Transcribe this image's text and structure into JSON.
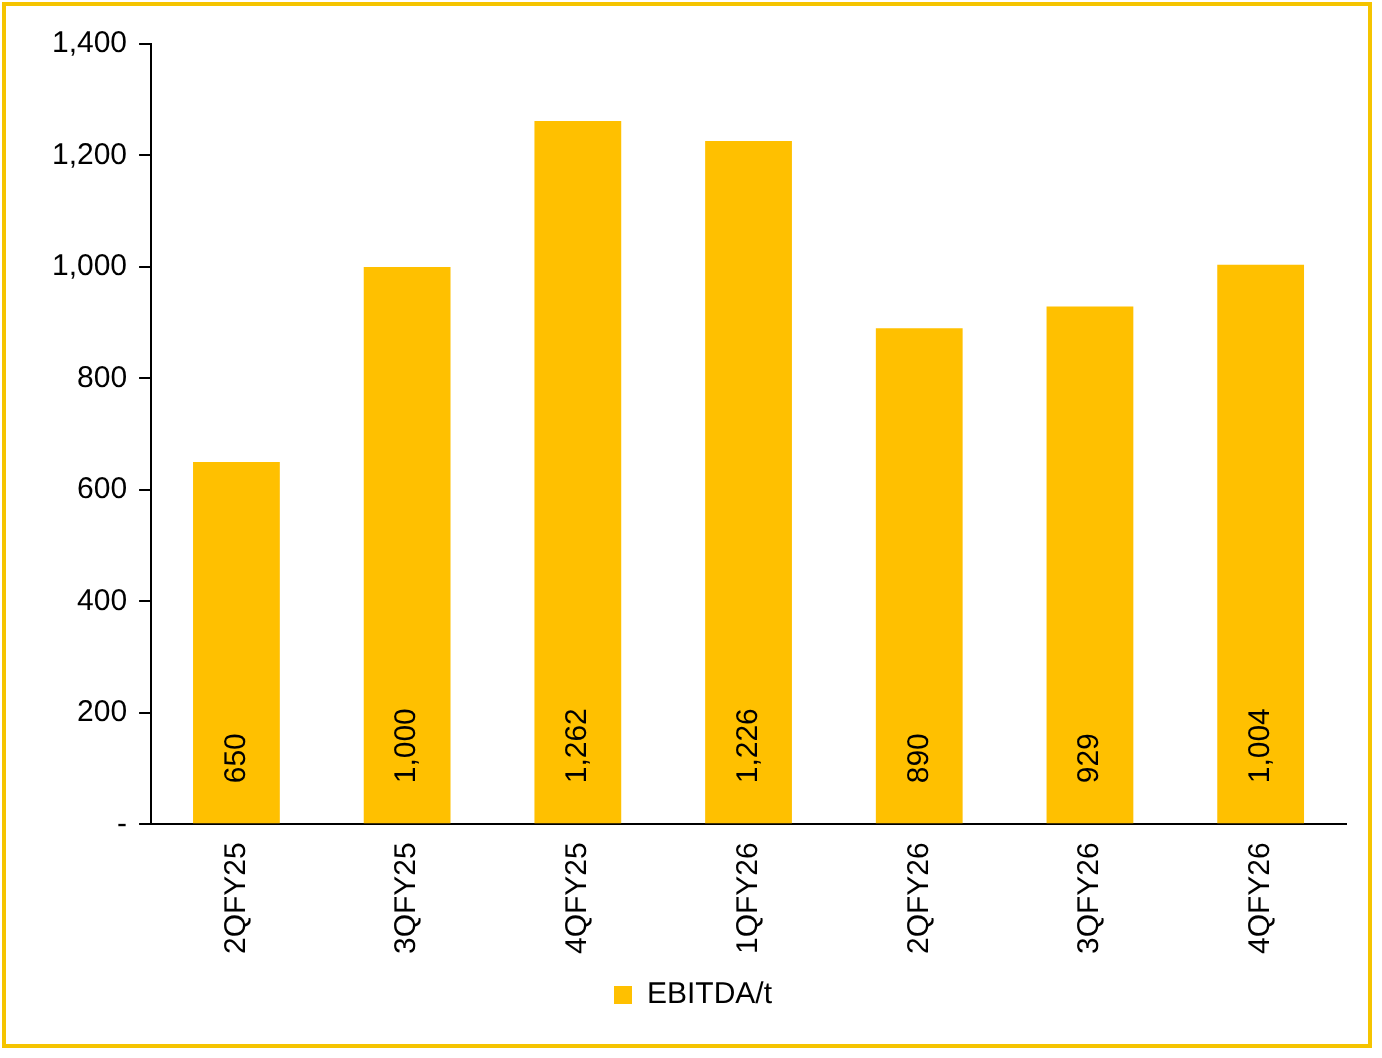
{
  "chart_data": {
    "type": "bar",
    "categories": [
      "2QFY25",
      "3QFY25",
      "4QFY25",
      "1QFY26",
      "2QFY26",
      "3QFY26",
      "4QFY26"
    ],
    "series": [
      {
        "name": "EBITDA/t",
        "color": "#ffc000",
        "values": [
          650,
          1000,
          1262,
          1226,
          890,
          929,
          1004
        ],
        "value_labels": [
          "650",
          "1,000",
          "1,262",
          "1,226",
          "890",
          "929",
          "1,004"
        ]
      }
    ],
    "ylim": [
      0,
      1400
    ],
    "yticks": [
      {
        "value": 0,
        "label": "-"
      },
      {
        "value": 200,
        "label": "200"
      },
      {
        "value": 400,
        "label": "400"
      },
      {
        "value": 600,
        "label": "600"
      },
      {
        "value": 800,
        "label": "800"
      },
      {
        "value": 1000,
        "label": "1,000"
      },
      {
        "value": 1200,
        "label": "1,200"
      },
      {
        "value": 1400,
        "label": "1,400"
      }
    ],
    "grid": false,
    "legend": "bottom"
  }
}
